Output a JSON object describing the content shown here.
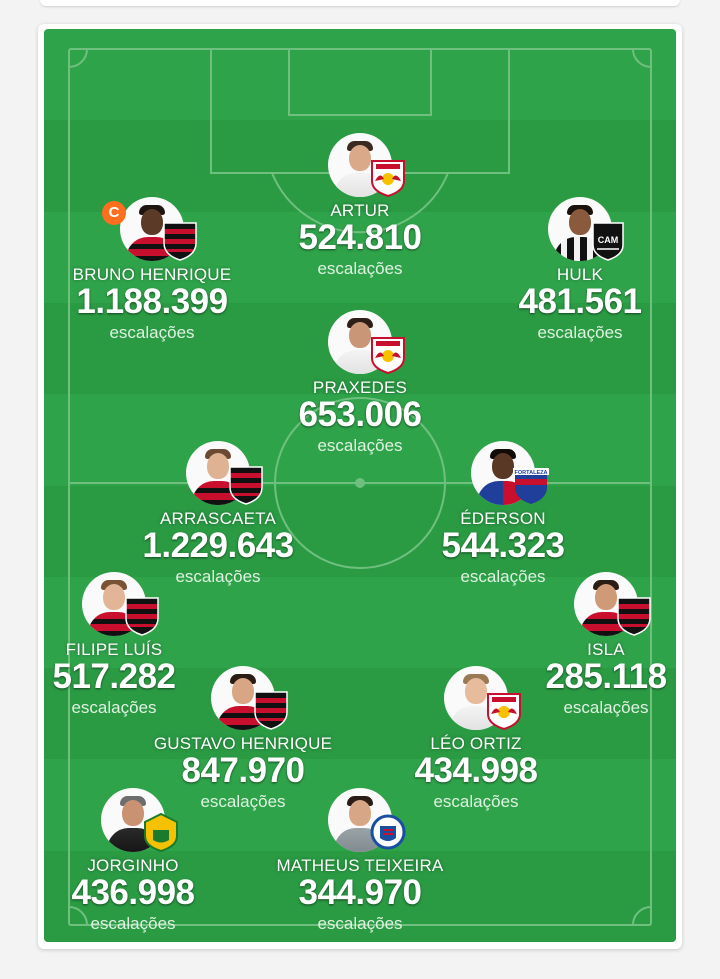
{
  "colors": {
    "pitch_light": "#2fa34a",
    "pitch_dark": "#2a9a43",
    "line": "#6fc07f",
    "captain": "#ff6e1f"
  },
  "captain_label": "C",
  "players": [
    {
      "id": "artur",
      "name": "ARTUR",
      "count": "524.810",
      "label": "escalações",
      "club": "red-bull-bragantino",
      "kit": "white",
      "skin": "#d9a98a",
      "hair": "#3a2a20",
      "captain": false
    },
    {
      "id": "bruno-henrique",
      "name": "BRUNO HENRIQUE",
      "count": "1.188.399",
      "label": "escalações",
      "club": "flamengo",
      "kit": "red-black",
      "skin": "#5b3a28",
      "hair": "#1f1510",
      "captain": true
    },
    {
      "id": "hulk",
      "name": "HULK",
      "count": "481.561",
      "label": "escalações",
      "club": "atletico-mineiro",
      "kit": "black-white",
      "skin": "#8a5a3c",
      "hair": "#1a120d",
      "captain": false
    },
    {
      "id": "praxedes",
      "name": "PRAXEDES",
      "count": "653.006",
      "label": "escalações",
      "club": "red-bull-bragantino",
      "kit": "white",
      "skin": "#c99677",
      "hair": "#2c1f18",
      "captain": false
    },
    {
      "id": "arrascaeta",
      "name": "ARRASCAETA",
      "count": "1.229.643",
      "label": "escalações",
      "club": "flamengo",
      "kit": "red-black",
      "skin": "#e0b294",
      "hair": "#6b4a33",
      "captain": false
    },
    {
      "id": "ederson",
      "name": "ÉDERSON",
      "count": "544.323",
      "label": "escalações",
      "club": "fortaleza",
      "kit": "blue-red",
      "skin": "#5a3826",
      "hair": "#120c08",
      "captain": false
    },
    {
      "id": "filipe-luis",
      "name": "FILIPE LUÍS",
      "count": "517.282",
      "label": "escalações",
      "club": "flamengo",
      "kit": "red-black",
      "skin": "#e3b597",
      "hair": "#7a5234",
      "captain": false
    },
    {
      "id": "isla",
      "name": "ISLA",
      "count": "285.118",
      "label": "escalações",
      "club": "flamengo",
      "kit": "red-black",
      "skin": "#cf9a78",
      "hair": "#2b1d14",
      "captain": false
    },
    {
      "id": "gustavo-henrique",
      "name": "GUSTAVO HENRIQUE",
      "count": "847.970",
      "label": "escalações",
      "club": "flamengo",
      "kit": "red-black",
      "skin": "#d8a685",
      "hair": "#2a1c14",
      "captain": false
    },
    {
      "id": "leo-ortiz",
      "name": "LÉO ORTIZ",
      "count": "434.998",
      "label": "escalações",
      "club": "red-bull-bragantino",
      "kit": "white",
      "skin": "#e6bc9c",
      "hair": "#9a7a55",
      "captain": false
    },
    {
      "id": "jorginho",
      "name": "JORGINHO",
      "count": "436.998",
      "label": "escalações",
      "club": "cuiaba",
      "kit": "black",
      "skin": "#c99272",
      "hair": "#6d6d6d",
      "captain": false
    },
    {
      "id": "matheus-teixeira",
      "name": "MATHEUS TEIXEIRA",
      "count": "344.970",
      "label": "escalações",
      "club": "bahia",
      "kit": "grey",
      "skin": "#d7a686",
      "hair": "#2a1d15",
      "captain": false
    }
  ],
  "club_badges": {
    "red-bull-bragantino": {
      "icon": "red-bull-bragantino-badge-icon",
      "text": "Red Bull"
    },
    "flamengo": {
      "icon": "flamengo-badge-icon",
      "text": ""
    },
    "atletico-mineiro": {
      "icon": "atletico-mineiro-badge-icon",
      "text": "CAM"
    },
    "fortaleza": {
      "icon": "fortaleza-badge-icon",
      "text": "FORTALEZA"
    },
    "cuiaba": {
      "icon": "cuiaba-badge-icon",
      "text": ""
    },
    "bahia": {
      "icon": "bahia-badge-icon",
      "text": ""
    }
  }
}
